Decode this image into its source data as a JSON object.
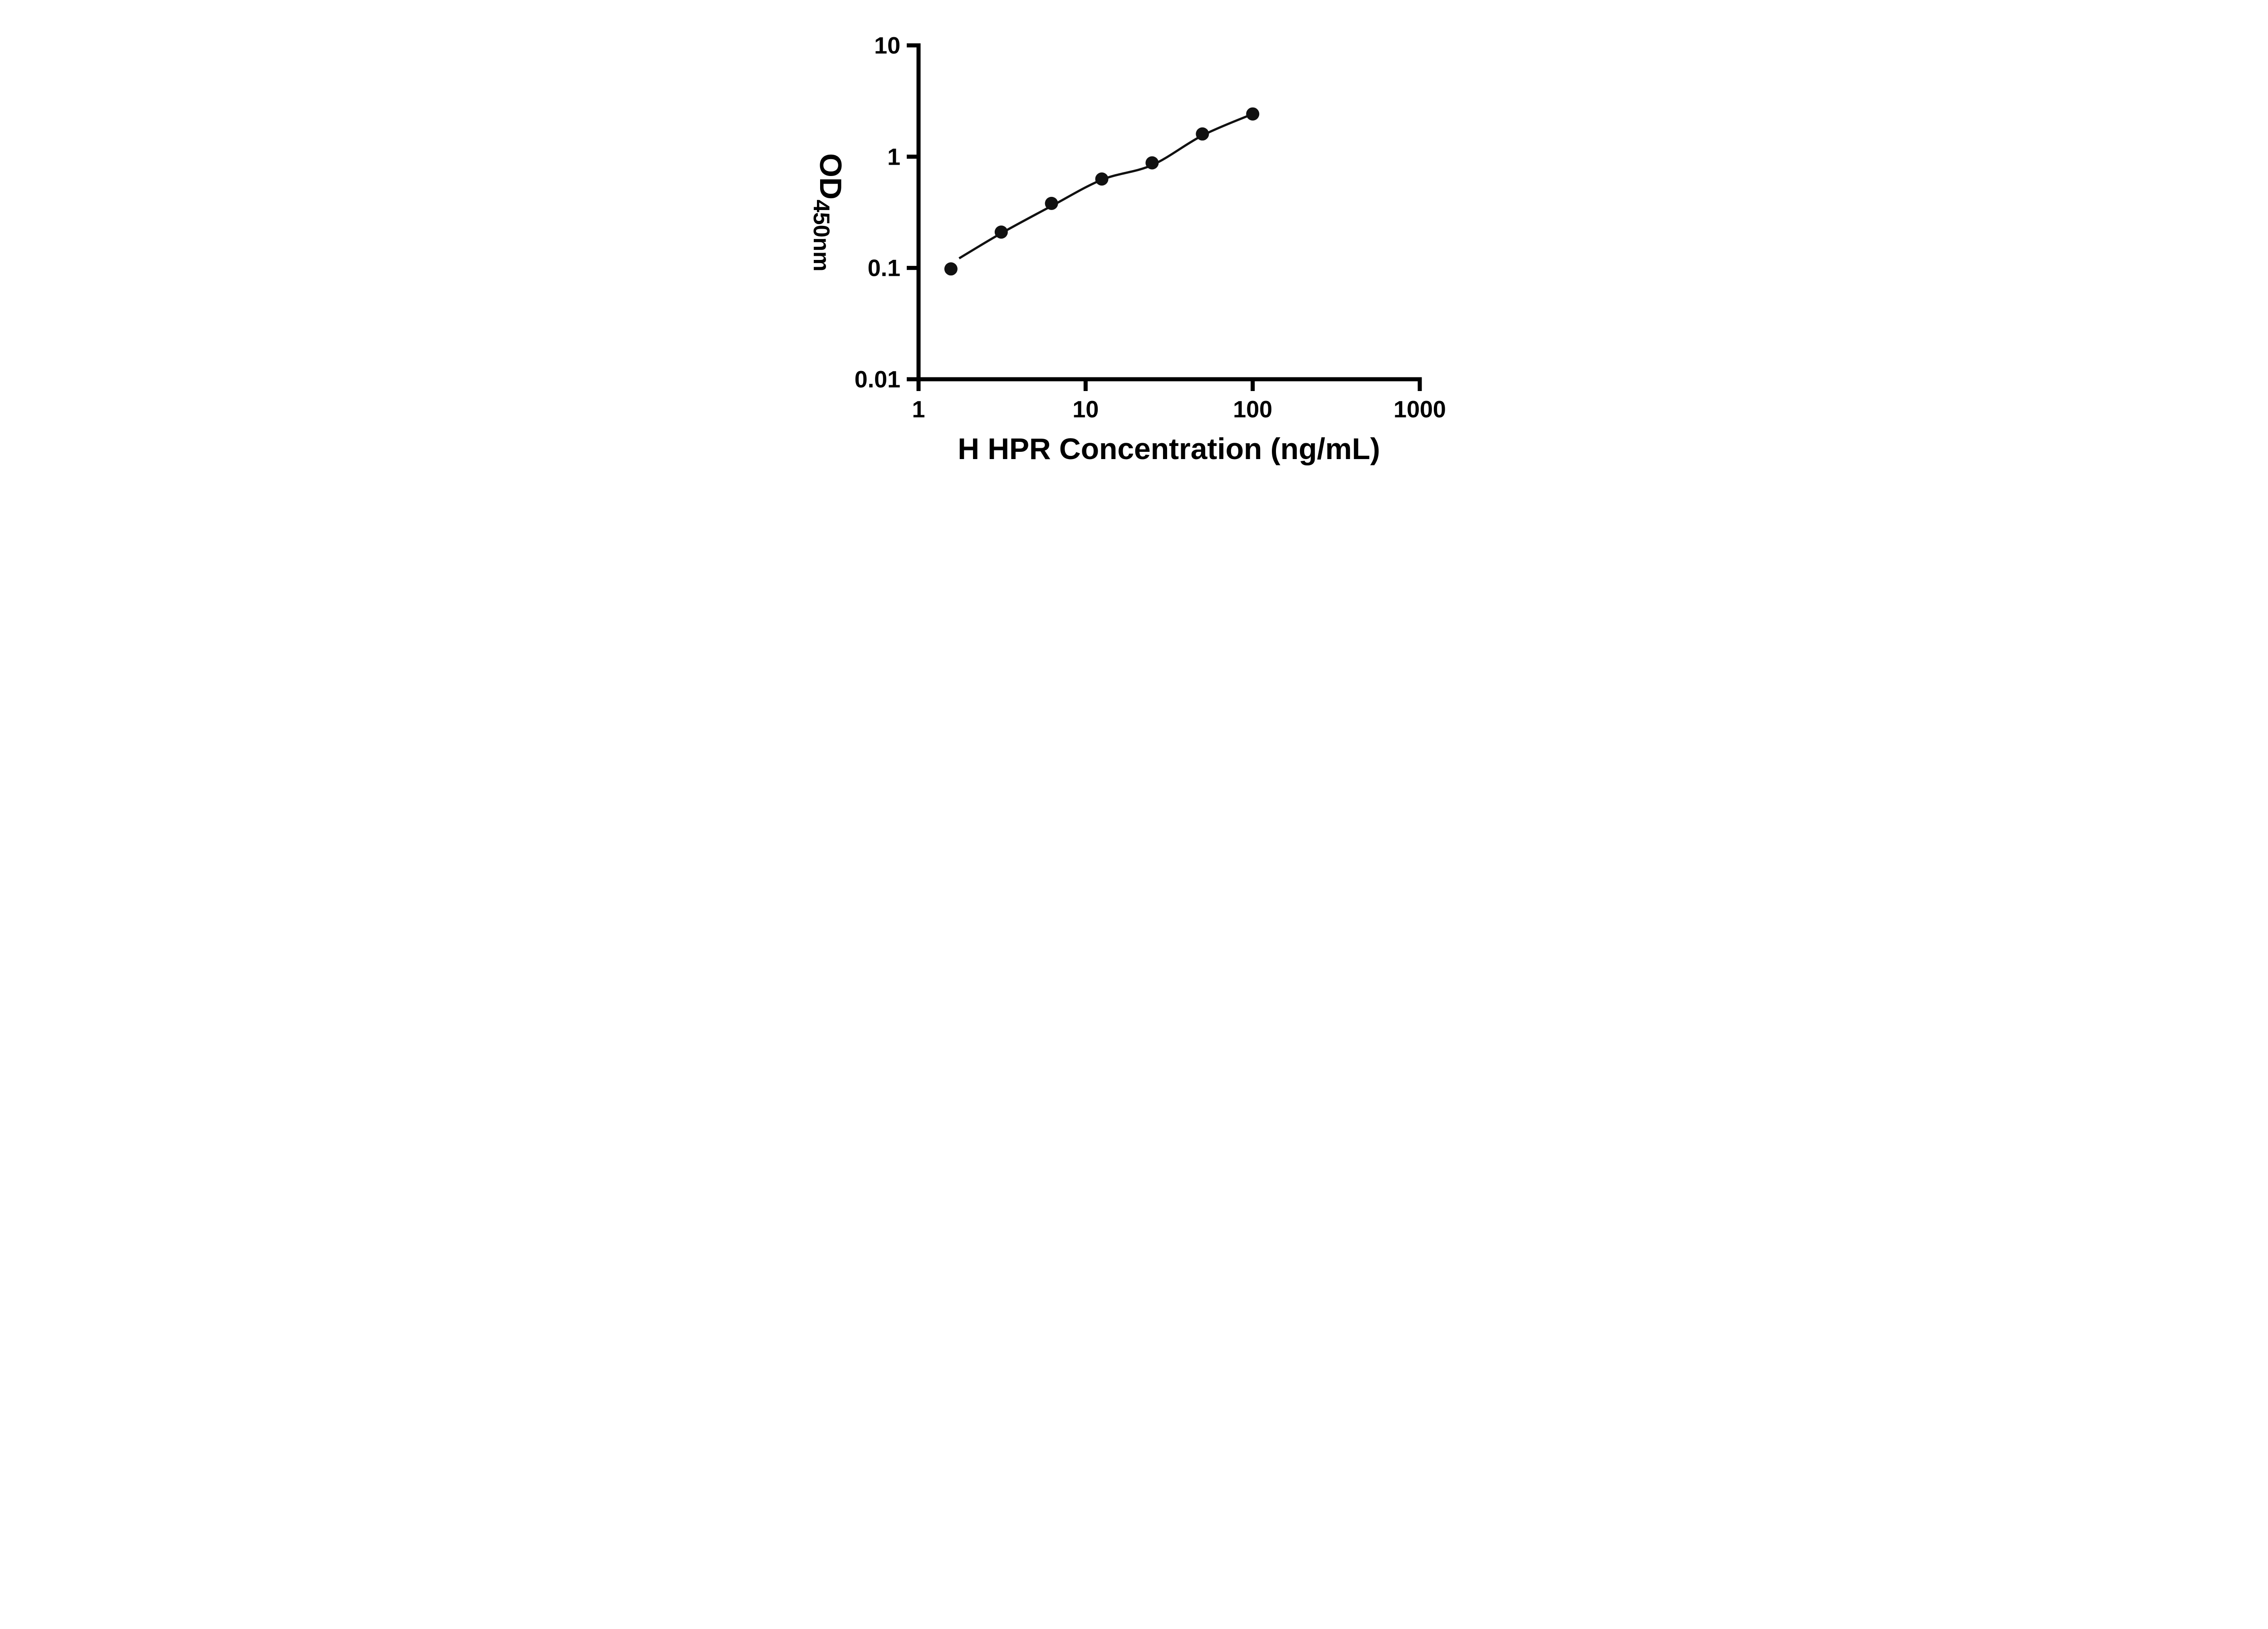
{
  "figure": {
    "background": "#ffffff"
  },
  "chart_data": {
    "type": "scatter",
    "title": "",
    "xlabel": "H HPR Concentration (ng/mL)",
    "ylabel": "OD450nm",
    "ylabel_main": "OD",
    "ylabel_sub": "450nm",
    "x_scale": "log",
    "y_scale": "log",
    "xlim": [
      1,
      1000
    ],
    "ylim": [
      0.01,
      10
    ],
    "x_ticks": [
      1,
      10,
      100,
      1000
    ],
    "x_tick_labels": [
      "1",
      "10",
      "100",
      "1000"
    ],
    "y_ticks": [
      0.01,
      0.1,
      1,
      10
    ],
    "y_tick_labels": [
      "0.01",
      "0.1",
      "1",
      "10"
    ],
    "grid": false,
    "legend": "none",
    "tick_direction": "out",
    "marker_color": "#111111",
    "line_color": "#111111",
    "axis_color": "#000000",
    "points": [
      {
        "x": 1.5625,
        "y": 0.098
      },
      {
        "x": 3.125,
        "y": 0.21
      },
      {
        "x": 6.25,
        "y": 0.38
      },
      {
        "x": 12.5,
        "y": 0.63
      },
      {
        "x": 25,
        "y": 0.88
      },
      {
        "x": 50,
        "y": 1.6
      },
      {
        "x": 100,
        "y": 2.42
      }
    ],
    "trend": [
      {
        "x": 1.75,
        "y": 0.122
      },
      {
        "x": 3.125,
        "y": 0.205
      },
      {
        "x": 6.25,
        "y": 0.36
      },
      {
        "x": 12.5,
        "y": 0.62
      },
      {
        "x": 25,
        "y": 0.84
      },
      {
        "x": 50,
        "y": 1.55
      },
      {
        "x": 100,
        "y": 2.42
      }
    ]
  }
}
